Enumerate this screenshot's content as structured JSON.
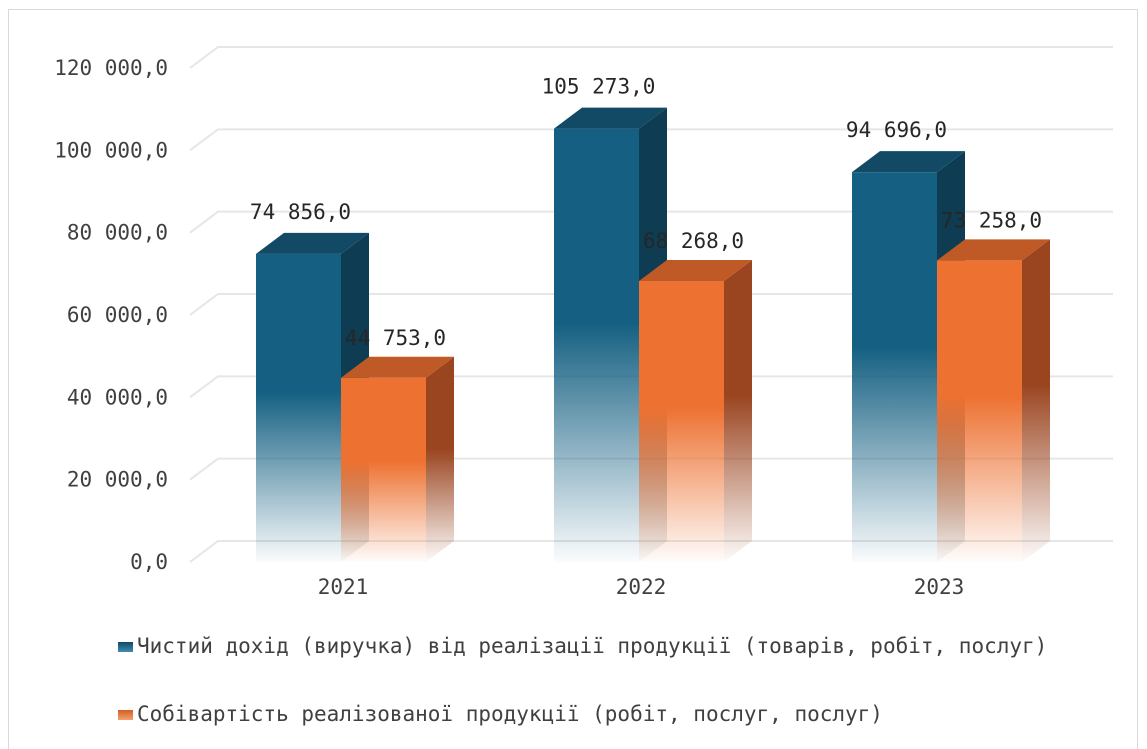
{
  "chart_data": {
    "type": "bar",
    "categories": [
      "2021",
      "2022",
      "2023"
    ],
    "series": [
      {
        "name": "Чистий дохід (виручка) від реалізації продукції (товарів, робіт, послуг)",
        "values": [
          74856.0,
          105273.0,
          94696.0
        ],
        "labels": [
          "74 856,0",
          "105 273,0",
          "94 696,0"
        ],
        "color": "#156082"
      },
      {
        "name": "Собівартість реалізованої продукції (робіт, послуг, послуг)",
        "values": [
          44753.0,
          68268.0,
          73258.0
        ],
        "labels": [
          "44 753,0",
          "68 268,0",
          "73 258,0"
        ],
        "color": "#e97132"
      }
    ],
    "y_ticks": [
      0,
      20000,
      40000,
      60000,
      80000,
      100000,
      120000
    ],
    "y_tick_labels": [
      "0,0",
      "20 000,0",
      "40 000,0",
      "60 000,0",
      "80 000,0",
      "100 000,0",
      "120 000,0"
    ],
    "ylim": [
      0,
      120000
    ],
    "grid": true,
    "legend_position": "bottom",
    "style": "3d-column"
  }
}
